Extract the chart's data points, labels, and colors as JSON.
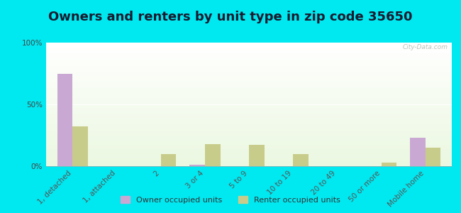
{
  "title": "Owners and renters by unit type in zip code 35650",
  "categories": [
    "1, detached",
    "1, attached",
    "2",
    "3 or 4",
    "5 to 9",
    "10 to 19",
    "20 to 49",
    "50 or more",
    "Mobile home"
  ],
  "owner_values": [
    75,
    0,
    0,
    1,
    0,
    0,
    0,
    0,
    23
  ],
  "renter_values": [
    32,
    0,
    10,
    18,
    17,
    10,
    0,
    3,
    15
  ],
  "owner_color": "#c9a8d4",
  "renter_color": "#c8cc8a",
  "bg_outer": "#00e8f0",
  "ylim": [
    0,
    100
  ],
  "yticks": [
    0,
    50,
    100
  ],
  "ytick_labels": [
    "0%",
    "50%",
    "100%"
  ],
  "legend_owner": "Owner occupied units",
  "legend_renter": "Renter occupied units",
  "bar_width": 0.35,
  "title_fontsize": 13,
  "tick_fontsize": 7.5,
  "watermark": "City-Data.com"
}
